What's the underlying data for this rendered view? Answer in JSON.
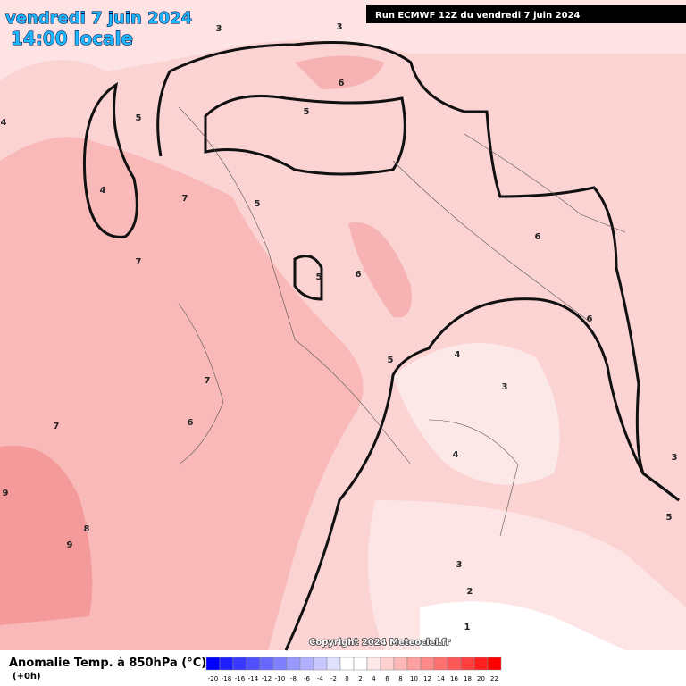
{
  "header": {
    "title": "vendredi 7 juin 2024",
    "subtitle": "14:00 locale",
    "run": "Run ECMWF 12Z du vendredi 7 juin 2024"
  },
  "map": {
    "contour_labels": [
      "3",
      "3",
      "4",
      "5",
      "4",
      "7",
      "7",
      "5",
      "6",
      "5",
      "6",
      "6",
      "5",
      "6",
      "5",
      "4",
      "3",
      "7",
      "6",
      "7",
      "9",
      "8",
      "9",
      "4",
      "3",
      "5",
      "3",
      "2",
      "1"
    ],
    "copyright": "Copyright 2024 Meteociel.fr"
  },
  "legend": {
    "title": "Anomalie Temp. à 850hPa (°C)",
    "lead": "(+0h)",
    "ticks": [
      -20,
      -18,
      -16,
      -14,
      -12,
      -10,
      -8,
      -6,
      -4,
      -2,
      0,
      2,
      4,
      6,
      8,
      10,
      12,
      14,
      16,
      18,
      20,
      22
    ],
    "colors": [
      "#0000ff",
      "#2020ff",
      "#3838ff",
      "#5050ff",
      "#6868ff",
      "#8080ff",
      "#9898ff",
      "#b0b0ff",
      "#c8c8ff",
      "#e0e0ff",
      "#ffffff",
      "#ffffff",
      "#ffe8e8",
      "#ffd0d0",
      "#ffb8b8",
      "#ffa0a0",
      "#ff8888",
      "#ff7070",
      "#ff5858",
      "#ff4040",
      "#ff2020",
      "#ff0000"
    ]
  }
}
